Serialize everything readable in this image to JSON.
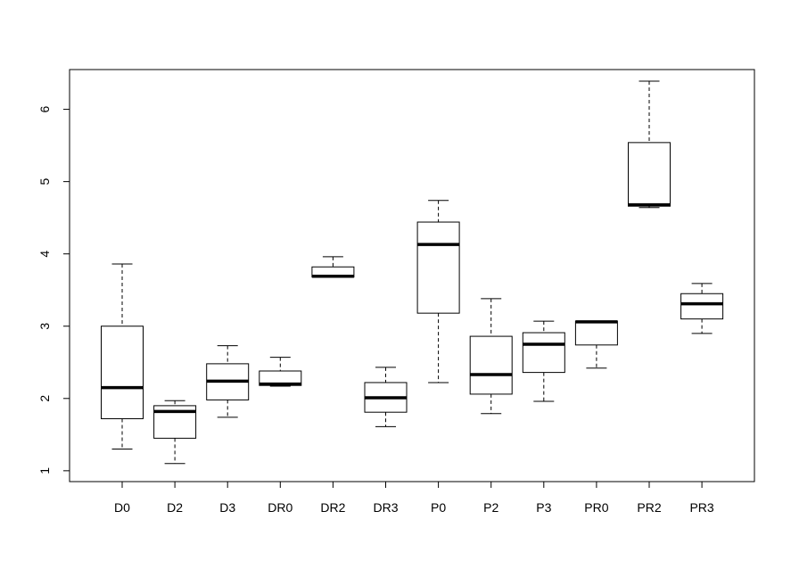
{
  "chart_data": {
    "type": "box",
    "title": "",
    "xlabel": "",
    "ylabel": "",
    "ylim": [
      0.85,
      6.55
    ],
    "yticks": [
      1,
      2,
      3,
      4,
      5,
      6
    ],
    "grid": false,
    "categories": [
      "D0",
      "D2",
      "D3",
      "DR0",
      "DR2",
      "DR3",
      "P0",
      "P2",
      "P3",
      "PR0",
      "PR2",
      "PR3"
    ],
    "boxes": [
      {
        "min": 1.3,
        "q1": 1.72,
        "median": 2.15,
        "q3": 3.0,
        "max": 3.86
      },
      {
        "min": 1.1,
        "q1": 1.45,
        "median": 1.82,
        "q3": 1.9,
        "max": 1.97
      },
      {
        "min": 1.74,
        "q1": 1.98,
        "median": 2.24,
        "q3": 2.48,
        "max": 2.73
      },
      {
        "min": 2.17,
        "q1": 2.18,
        "median": 2.2,
        "q3": 2.38,
        "max": 2.57
      },
      {
        "min": 3.68,
        "q1": 3.68,
        "median": 3.69,
        "q3": 3.82,
        "max": 3.96
      },
      {
        "min": 1.61,
        "q1": 1.81,
        "median": 2.01,
        "q3": 2.22,
        "max": 2.43
      },
      {
        "min": 2.22,
        "q1": 3.18,
        "median": 4.13,
        "q3": 4.44,
        "max": 4.74
      },
      {
        "min": 1.79,
        "q1": 2.06,
        "median": 2.33,
        "q3": 2.86,
        "max": 3.38
      },
      {
        "min": 1.96,
        "q1": 2.36,
        "median": 2.75,
        "q3": 2.91,
        "max": 3.07
      },
      {
        "min": 2.42,
        "q1": 2.74,
        "median": 3.06,
        "q3": 3.07,
        "max": 3.07
      },
      {
        "min": 4.64,
        "q1": 4.66,
        "median": 4.68,
        "q3": 5.54,
        "max": 6.39
      },
      {
        "min": 2.9,
        "q1": 3.1,
        "median": 3.31,
        "q3": 3.45,
        "max": 3.59
      }
    ]
  }
}
